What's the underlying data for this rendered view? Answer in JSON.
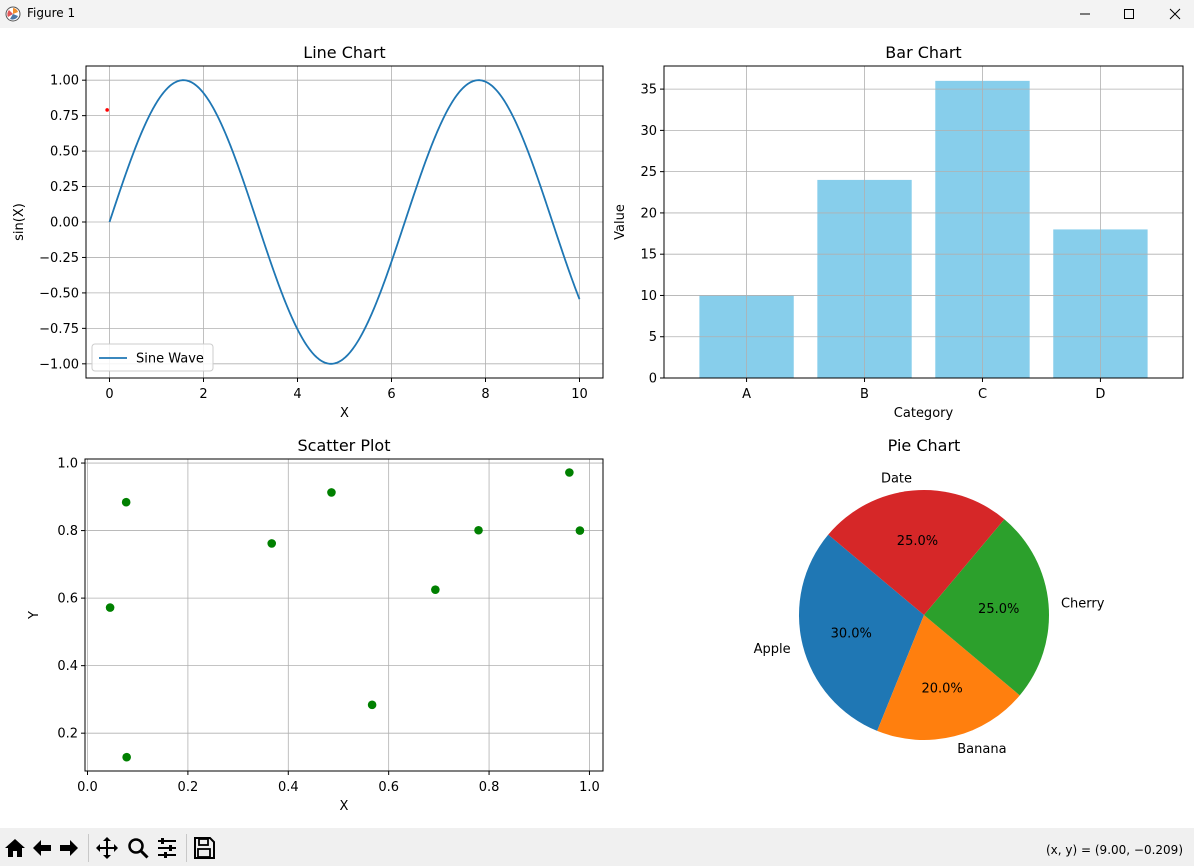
{
  "window": {
    "title": "Figure 1"
  },
  "charts": {
    "line": {
      "type": "line",
      "title": "Line Chart",
      "xlabel": "X",
      "ylabel": "sin(X)",
      "xlim": [
        -0.5,
        10.5
      ],
      "ylim": [
        -1.1,
        1.1
      ],
      "xticks": [
        0,
        2,
        4,
        6,
        8,
        10
      ],
      "yticks": [
        -1.0,
        -0.75,
        -0.5,
        -0.25,
        0.0,
        0.25,
        0.5,
        0.75,
        1.0
      ],
      "xtick_labels": [
        "0",
        "2",
        "4",
        "6",
        "8",
        "10"
      ],
      "ytick_labels": [
        "−1.00",
        "−0.75",
        "−0.50",
        "−0.25",
        "0.00",
        "0.25",
        "0.50",
        "0.75",
        "1.00"
      ],
      "series": [
        {
          "name": "Sine Wave",
          "function": "sin",
          "x_from": 0,
          "x_to": 10,
          "color": "#1f77b4"
        }
      ],
      "legend": "lower-left",
      "grid": true,
      "marker_point": {
        "x": -0.05,
        "y": 0.79,
        "color": "#ff0000"
      }
    },
    "bar": {
      "type": "bar",
      "title": "Bar Chart",
      "xlabel": "Category",
      "ylabel": "Value",
      "categories": [
        "A",
        "B",
        "C",
        "D"
      ],
      "values": [
        10,
        24,
        36,
        18
      ],
      "ylim": [
        0,
        37.8
      ],
      "yticks": [
        0,
        5,
        10,
        15,
        20,
        25,
        30,
        35
      ],
      "ytick_labels": [
        "0",
        "5",
        "10",
        "15",
        "20",
        "25",
        "30",
        "35"
      ],
      "color": "#87ceeb",
      "grid": true
    },
    "scatter": {
      "type": "scatter",
      "title": "Scatter Plot",
      "xlabel": "X",
      "ylabel": "Y",
      "xlim": [
        -0.005,
        1.027
      ],
      "ylim": [
        0.088,
        1.012
      ],
      "xticks": [
        0.0,
        0.2,
        0.4,
        0.6,
        0.8,
        1.0
      ],
      "yticks": [
        0.2,
        0.4,
        0.6,
        0.8,
        1.0
      ],
      "xtick_labels": [
        "0.0",
        "0.2",
        "0.4",
        "0.6",
        "0.8",
        "1.0"
      ],
      "ytick_labels": [
        "0.2",
        "0.4",
        "0.6",
        "0.8",
        "1.0"
      ],
      "x": [
        0.077,
        0.045,
        0.078,
        0.367,
        0.486,
        0.567,
        0.693,
        0.779,
        0.96,
        0.981
      ],
      "y": [
        0.884,
        0.572,
        0.129,
        0.762,
        0.913,
        0.284,
        0.625,
        0.801,
        0.972,
        0.8
      ],
      "color": "#008000",
      "grid": true
    },
    "pie": {
      "type": "pie",
      "title": "Pie Chart",
      "labels": [
        "Apple",
        "Banana",
        "Cherry",
        "Date"
      ],
      "values": [
        30,
        20,
        25,
        25
      ],
      "pct_labels": [
        "30.0%",
        "20.0%",
        "25.0%",
        "25.0%"
      ],
      "colors": [
        "#1f77b4",
        "#ff7f0e",
        "#2ca02c",
        "#d62728"
      ],
      "startangle": 140
    }
  },
  "toolbar": {
    "icons": [
      "home-icon",
      "back-icon",
      "forward-icon",
      "pan-icon",
      "zoom-icon",
      "configure-icon",
      "save-icon"
    ],
    "coords": "(x, y) = (9.00, −0.209)"
  }
}
